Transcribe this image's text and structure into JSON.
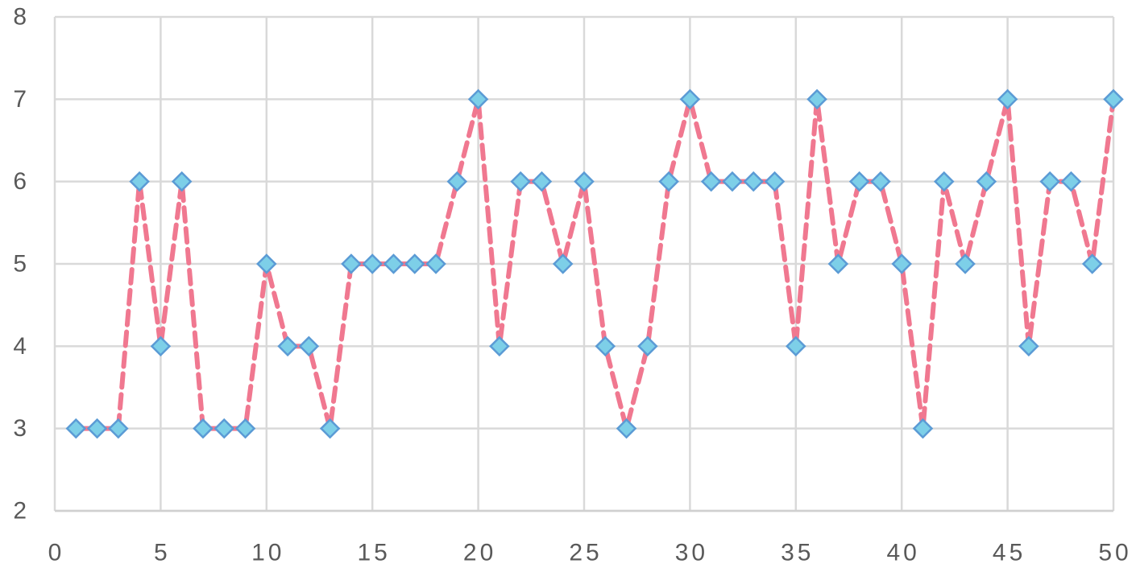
{
  "chart_data": {
    "type": "line",
    "title": "",
    "xlabel": "",
    "ylabel": "",
    "xlim": [
      0,
      50
    ],
    "ylim": [
      2,
      8
    ],
    "x_ticks": [
      "0",
      "5",
      "10",
      "15",
      "20",
      "25",
      "30",
      "35",
      "40",
      "45",
      "50"
    ],
    "y_ticks": [
      "2",
      "3",
      "4",
      "5",
      "6",
      "7",
      "8"
    ],
    "grid": true,
    "legend": "none",
    "series": [
      {
        "line_style": "dashed",
        "line_color": "#F07890",
        "marker": "diamond",
        "marker_fill": "#7DCFE8",
        "marker_edge": "#5B9BD5",
        "x": [
          1,
          2,
          3,
          4,
          5,
          6,
          7,
          8,
          9,
          10,
          11,
          12,
          13,
          14,
          15,
          16,
          17,
          18,
          19,
          20,
          21,
          22,
          23,
          24,
          25,
          26,
          27,
          28,
          29,
          30,
          31,
          32,
          33,
          34,
          35,
          36,
          37,
          38,
          39,
          40,
          41,
          42,
          43,
          44,
          45,
          46,
          47,
          48,
          49,
          50
        ],
        "values": [
          3,
          3,
          3,
          6,
          4,
          6,
          3,
          3,
          3,
          5,
          4,
          4,
          3,
          5,
          5,
          5,
          5,
          5,
          6,
          7,
          4,
          6,
          6,
          5,
          6,
          4,
          3,
          4,
          6,
          7,
          6,
          6,
          6,
          6,
          4,
          7,
          5,
          6,
          6,
          5,
          3,
          6,
          5,
          6,
          7,
          4,
          6,
          6,
          5,
          7
        ]
      }
    ]
  }
}
